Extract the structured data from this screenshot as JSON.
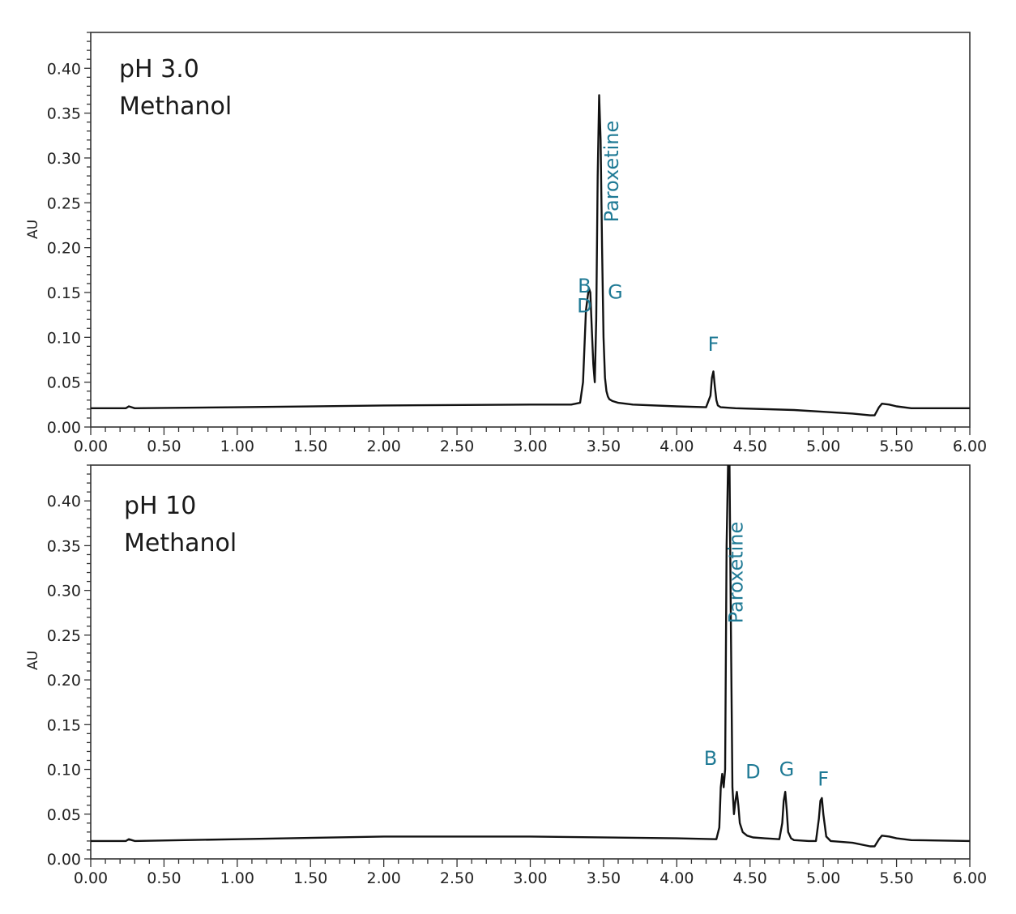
{
  "chart_data": [
    {
      "type": "line",
      "ylabel": "AU",
      "xlim": [
        0,
        6
      ],
      "ylim": [
        0,
        0.44
      ],
      "x_ticks": [
        "0.00",
        "0.50",
        "1.00",
        "1.50",
        "2.00",
        "2.50",
        "3.00",
        "3.50",
        "4.00",
        "4.50",
        "5.00",
        "5.50",
        "6.00"
      ],
      "y_ticks": [
        "0.00",
        "0.05",
        "0.10",
        "0.15",
        "0.20",
        "0.25",
        "0.30",
        "0.35",
        "0.40"
      ],
      "annotations": [
        "pH 3.0",
        "Methanol"
      ],
      "peak_labels": [
        {
          "text": "B",
          "x": 3.37,
          "y": 0.15,
          "vertical": false
        },
        {
          "text": "D",
          "x": 3.37,
          "y": 0.128,
          "vertical": false
        },
        {
          "text": "G",
          "x": 3.58,
          "y": 0.143,
          "vertical": false
        },
        {
          "text": "Paroxetine",
          "x": 3.6,
          "y": 0.285,
          "vertical": true
        },
        {
          "text": "F",
          "x": 4.25,
          "y": 0.085,
          "vertical": false
        }
      ],
      "series": [
        {
          "x": [
            0,
            0.24,
            0.26,
            0.28,
            0.3,
            1.0,
            2.0,
            3.0,
            3.28,
            3.34,
            3.36,
            3.38,
            3.4,
            3.41,
            3.42,
            3.43,
            3.44,
            3.45,
            3.46,
            3.47,
            3.48,
            3.49,
            3.5,
            3.51,
            3.52,
            3.53,
            3.54,
            3.56,
            3.6,
            3.7,
            4.0,
            4.2,
            4.23,
            4.24,
            4.25,
            4.26,
            4.27,
            4.28,
            4.3,
            4.4,
            4.8,
            5.0,
            5.2,
            5.32,
            5.35,
            5.38,
            5.4,
            5.45,
            5.5,
            5.6,
            6.0
          ],
          "y": [
            0.021,
            0.021,
            0.023,
            0.022,
            0.021,
            0.022,
            0.024,
            0.025,
            0.025,
            0.027,
            0.05,
            0.13,
            0.155,
            0.15,
            0.11,
            0.07,
            0.05,
            0.12,
            0.28,
            0.37,
            0.32,
            0.2,
            0.1,
            0.055,
            0.04,
            0.034,
            0.031,
            0.029,
            0.027,
            0.025,
            0.023,
            0.022,
            0.035,
            0.055,
            0.062,
            0.045,
            0.03,
            0.024,
            0.022,
            0.021,
            0.019,
            0.017,
            0.015,
            0.013,
            0.013,
            0.022,
            0.026,
            0.025,
            0.023,
            0.021,
            0.021
          ]
        }
      ]
    },
    {
      "type": "line",
      "ylabel": "AU",
      "xlim": [
        0,
        6
      ],
      "ylim": [
        0,
        0.44
      ],
      "x_ticks": [
        "0.00",
        "0.50",
        "1.00",
        "1.50",
        "2.00",
        "2.50",
        "3.00",
        "3.50",
        "4.00",
        "4.50",
        "5.00",
        "5.50",
        "6.00"
      ],
      "y_ticks": [
        "0.00",
        "0.05",
        "0.10",
        "0.15",
        "0.20",
        "0.25",
        "0.30",
        "0.35",
        "0.40"
      ],
      "annotations": [
        "pH 10",
        "Methanol"
      ],
      "peak_labels": [
        {
          "text": "B",
          "x": 4.23,
          "y": 0.105,
          "vertical": false
        },
        {
          "text": "Paroxetine",
          "x": 4.45,
          "y": 0.32,
          "vertical": true
        },
        {
          "text": "D",
          "x": 4.52,
          "y": 0.09,
          "vertical": false
        },
        {
          "text": "G",
          "x": 4.75,
          "y": 0.093,
          "vertical": false
        },
        {
          "text": "F",
          "x": 5.0,
          "y": 0.082,
          "vertical": false
        }
      ],
      "series": [
        {
          "x": [
            0,
            0.24,
            0.26,
            0.28,
            0.3,
            1.0,
            2.0,
            3.0,
            4.0,
            4.27,
            4.29,
            4.3,
            4.31,
            4.32,
            4.33,
            4.34,
            4.35,
            4.36,
            4.37,
            4.38,
            4.39,
            4.4,
            4.41,
            4.42,
            4.43,
            4.45,
            4.48,
            4.52,
            4.6,
            4.7,
            4.72,
            4.73,
            4.74,
            4.75,
            4.76,
            4.78,
            4.8,
            4.9,
            4.95,
            4.97,
            4.98,
            4.99,
            5.0,
            5.02,
            5.05,
            5.2,
            5.32,
            5.35,
            5.38,
            5.4,
            5.45,
            5.5,
            5.6,
            6.0
          ],
          "y": [
            0.02,
            0.02,
            0.022,
            0.021,
            0.02,
            0.022,
            0.025,
            0.025,
            0.023,
            0.022,
            0.035,
            0.08,
            0.095,
            0.08,
            0.1,
            0.35,
            0.44,
            0.44,
            0.25,
            0.08,
            0.05,
            0.065,
            0.075,
            0.06,
            0.04,
            0.03,
            0.026,
            0.024,
            0.023,
            0.022,
            0.04,
            0.065,
            0.075,
            0.055,
            0.03,
            0.023,
            0.021,
            0.02,
            0.02,
            0.045,
            0.065,
            0.068,
            0.05,
            0.025,
            0.02,
            0.018,
            0.014,
            0.014,
            0.022,
            0.026,
            0.025,
            0.023,
            0.021,
            0.02
          ]
        }
      ]
    }
  ]
}
